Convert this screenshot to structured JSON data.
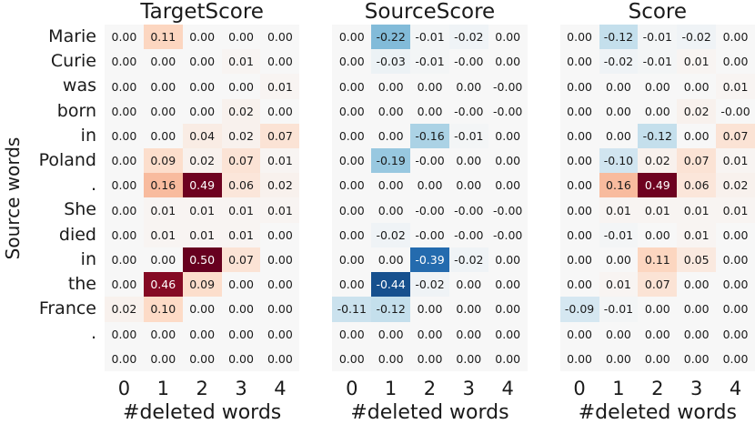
{
  "figure": {
    "y_axis_label": "Source words",
    "x_axis_label": "#deleted words",
    "x_ticks": [
      "0",
      "1",
      "2",
      "3",
      "4"
    ],
    "row_labels": [
      "Marie",
      "Curie",
      "was",
      "born",
      "in",
      "Poland",
      ".",
      "She",
      "died",
      "in",
      "the",
      "France",
      ".",
      ""
    ]
  },
  "chart_data": {
    "type": "heatmap",
    "x_label": "#deleted words",
    "y_label": "Source words",
    "x_ticks": [
      "0",
      "1",
      "2",
      "3",
      "4"
    ],
    "rows": [
      "Marie",
      "Curie",
      "was",
      "born",
      "in",
      "Poland",
      ".",
      "She",
      "died",
      "in",
      "the",
      "France",
      ".",
      ""
    ],
    "color_scale": {
      "colormap": "RdBu_r",
      "vmin": -0.5,
      "vmax": 0.5,
      "zero_color": "#f7f7f7",
      "positive_extreme": "#67001f",
      "negative_extreme": "#053061",
      "white_text_threshold": 0.35
    },
    "panels": [
      {
        "title": "TargetScore",
        "values": [
          [
            "0.00",
            "0.11",
            "0.00",
            "0.00",
            "0.00"
          ],
          [
            "0.00",
            "0.00",
            "0.00",
            "0.01",
            "0.00"
          ],
          [
            "0.00",
            "0.00",
            "0.00",
            "0.00",
            "0.01"
          ],
          [
            "0.00",
            "0.00",
            "0.00",
            "0.02",
            "0.00"
          ],
          [
            "0.00",
            "0.00",
            "0.04",
            "0.02",
            "0.07"
          ],
          [
            "0.00",
            "0.09",
            "0.02",
            "0.07",
            "0.01"
          ],
          [
            "0.00",
            "0.16",
            "0.49",
            "0.06",
            "0.02"
          ],
          [
            "0.00",
            "0.01",
            "0.01",
            "0.01",
            "0.01"
          ],
          [
            "0.00",
            "0.01",
            "0.01",
            "0.01",
            "0.00"
          ],
          [
            "0.00",
            "0.00",
            "0.50",
            "0.07",
            "0.00"
          ],
          [
            "0.00",
            "0.46",
            "0.09",
            "0.00",
            "0.00"
          ],
          [
            "0.02",
            "0.10",
            "0.00",
            "0.00",
            "0.00"
          ],
          [
            "0.00",
            "0.00",
            "0.00",
            "0.00",
            "0.00"
          ],
          [
            "0.00",
            "0.00",
            "0.00",
            "0.00",
            "0.00"
          ]
        ]
      },
      {
        "title": "SourceScore",
        "values": [
          [
            "0.00",
            "-0.22",
            "-0.01",
            "-0.02",
            "0.00"
          ],
          [
            "0.00",
            "-0.03",
            "-0.01",
            "-0.00",
            "0.00"
          ],
          [
            "0.00",
            "0.00",
            "0.00",
            "0.00",
            "-0.00"
          ],
          [
            "0.00",
            "0.00",
            "0.00",
            "-0.00",
            "-0.00"
          ],
          [
            "0.00",
            "0.00",
            "-0.16",
            "-0.01",
            "0.00"
          ],
          [
            "0.00",
            "-0.19",
            "-0.00",
            "0.00",
            "0.00"
          ],
          [
            "0.00",
            "0.00",
            "0.00",
            "0.00",
            "0.00"
          ],
          [
            "0.00",
            "0.00",
            "-0.00",
            "-0.00",
            "-0.00"
          ],
          [
            "0.00",
            "-0.02",
            "-0.00",
            "-0.00",
            "-0.00"
          ],
          [
            "0.00",
            "0.00",
            "-0.39",
            "-0.02",
            "0.00"
          ],
          [
            "0.00",
            "-0.44",
            "-0.02",
            "0.00",
            "0.00"
          ],
          [
            "-0.11",
            "-0.12",
            "0.00",
            "0.00",
            "0.00"
          ],
          [
            "0.00",
            "0.00",
            "0.00",
            "0.00",
            "0.00"
          ],
          [
            "0.00",
            "0.00",
            "0.00",
            "0.00",
            "0.00"
          ]
        ]
      },
      {
        "title": "Score",
        "values": [
          [
            "0.00",
            "-0.12",
            "-0.01",
            "-0.02",
            "0.00"
          ],
          [
            "0.00",
            "-0.02",
            "-0.01",
            "0.01",
            "0.00"
          ],
          [
            "0.00",
            "0.00",
            "0.00",
            "0.00",
            "0.01"
          ],
          [
            "0.00",
            "0.00",
            "0.00",
            "0.02",
            "-0.00"
          ],
          [
            "0.00",
            "0.00",
            "-0.12",
            "0.00",
            "0.07"
          ],
          [
            "0.00",
            "-0.10",
            "0.02",
            "0.07",
            "0.01"
          ],
          [
            "0.00",
            "0.16",
            "0.49",
            "0.06",
            "0.02"
          ],
          [
            "0.00",
            "0.01",
            "0.01",
            "0.01",
            "0.01"
          ],
          [
            "0.00",
            "-0.01",
            "0.00",
            "0.01",
            "0.00"
          ],
          [
            "0.00",
            "0.00",
            "0.11",
            "0.05",
            "0.00"
          ],
          [
            "0.00",
            "0.01",
            "0.07",
            "0.00",
            "0.00"
          ],
          [
            "-0.09",
            "-0.01",
            "0.00",
            "0.00",
            "0.00"
          ],
          [
            "0.00",
            "0.00",
            "0.00",
            "0.00",
            "0.00"
          ],
          [
            "0.00",
            "0.00",
            "0.00",
            "0.00",
            "0.00"
          ]
        ]
      }
    ]
  }
}
